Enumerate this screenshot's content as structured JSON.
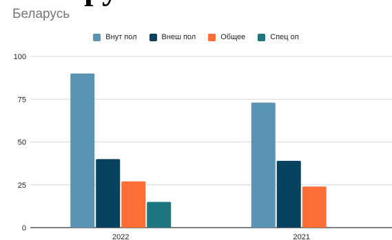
{
  "header": {
    "cut_text": "Беларусь"
  },
  "chart_data": {
    "type": "bar",
    "title": "Беларусь",
    "categories": [
      "2022",
      "2021"
    ],
    "series": [
      {
        "name": "Внут пол",
        "values": [
          90,
          73
        ],
        "color": "#5b94b2"
      },
      {
        "name": "Внеш пол",
        "values": [
          40,
          39
        ],
        "color": "#07425f"
      },
      {
        "name": "Общее",
        "values": [
          27,
          24
        ],
        "color": "#fd6e36"
      },
      {
        "name": "Спец оп",
        "values": [
          15,
          null
        ],
        "color": "#1e7681"
      }
    ],
    "yticks": [
      "0",
      "25",
      "50",
      "75",
      "100"
    ],
    "ylim": [
      0,
      100
    ],
    "grid": true,
    "legend_position": "top-center"
  }
}
